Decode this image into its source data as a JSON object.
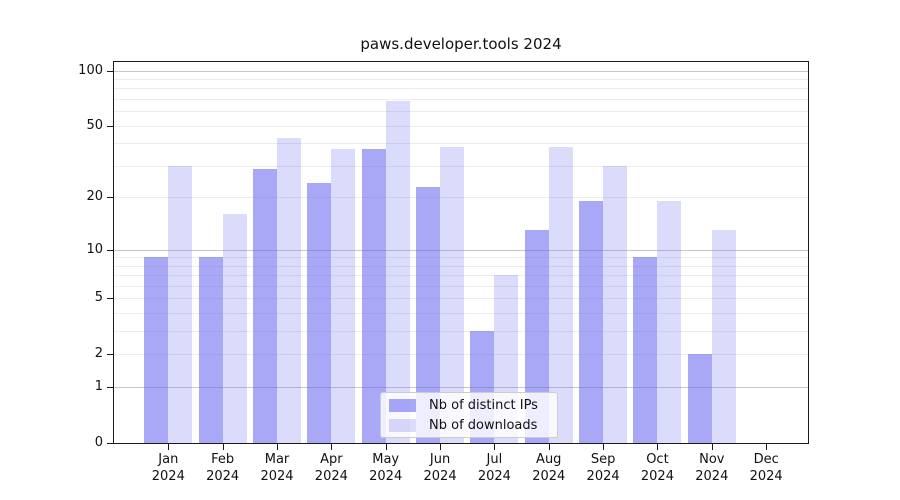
{
  "title": "paws.developer.tools 2024",
  "legend": {
    "items": [
      {
        "label": "Nb of distinct IPs",
        "color": "#a8a8f7"
      },
      {
        "label": "Nb of downloads",
        "color": "#dbdbfb"
      }
    ]
  },
  "colors": {
    "accent_base": "#6464f0",
    "bar_distinct_ips": "#a8a8f7",
    "bar_downloads": "#dbdbfb",
    "gridline_minor": "#ececec",
    "gridline_major": "#c8c8c8",
    "axis": "#1a1a1a"
  },
  "y_axis": {
    "tick_labels": [
      "0",
      "1",
      "2",
      "5",
      "10",
      "20",
      "50",
      "100"
    ],
    "tick_values": [
      0,
      1,
      2,
      5,
      10,
      20,
      50,
      100
    ],
    "minor_gridlines": [
      2,
      3,
      4,
      5,
      6,
      7,
      8,
      9,
      20,
      30,
      40,
      50,
      60,
      70,
      80,
      90
    ],
    "major_gridlines": [
      1,
      10,
      100
    ]
  },
  "x_axis": {
    "months": [
      "Jan",
      "Feb",
      "Mar",
      "Apr",
      "May",
      "Jun",
      "Jul",
      "Aug",
      "Sep",
      "Oct",
      "Nov",
      "Dec"
    ],
    "year": "2024"
  },
  "chart_data": {
    "type": "bar",
    "scale": "log1p",
    "title": "paws.developer.tools 2024",
    "xlabel": "",
    "ylabel": "",
    "categories": [
      "Jan 2024",
      "Feb 2024",
      "Mar 2024",
      "Apr 2024",
      "May 2024",
      "Jun 2024",
      "Jul 2024",
      "Aug 2024",
      "Sep 2024",
      "Oct 2024",
      "Nov 2024",
      "Dec 2024"
    ],
    "series": [
      {
        "name": "Nb of distinct IPs",
        "values": [
          9,
          9,
          29,
          24,
          37,
          23,
          3,
          13,
          19,
          9,
          2,
          0
        ]
      },
      {
        "name": "Nb of downloads",
        "values": [
          30,
          16,
          43,
          37,
          68,
          38,
          7,
          38,
          30,
          19,
          13,
          0
        ]
      }
    ],
    "yticks": [
      0,
      1,
      2,
      5,
      10,
      20,
      50,
      100
    ],
    "ylim": [
      0,
      112
    ],
    "grid": "horizontal",
    "legend_position": "lower center"
  }
}
